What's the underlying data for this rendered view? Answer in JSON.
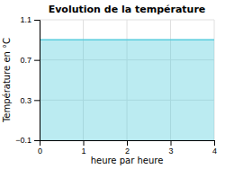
{
  "chart_data": {
    "type": "area",
    "title": "Evolution de la température",
    "xlabel": "heure par heure",
    "ylabel": "Température en °C",
    "x": [
      0,
      4
    ],
    "values": [
      0.9,
      0.9
    ],
    "color": "#55ccdd",
    "xlim": [
      0,
      4
    ],
    "ylim": [
      -0.1,
      1.1
    ],
    "xticks": [
      0,
      1,
      2,
      3,
      4
    ],
    "yticks": [
      {
        "value": -0.1,
        "label": "−0.1"
      },
      0.3,
      0.7,
      1.1
    ],
    "grid": true
  }
}
